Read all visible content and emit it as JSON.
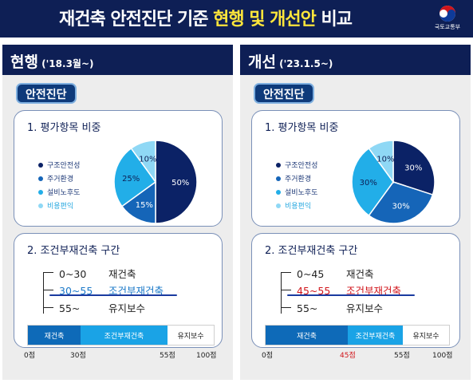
{
  "header": {
    "title_part1": "재건축 안전진단 기준 ",
    "title_highlight": "현행 및 개선안",
    "title_part2": " 비교",
    "logo_text": "국토교통부"
  },
  "left": {
    "title": "현행",
    "period": " ('18.3월~)",
    "badge": "안전진단",
    "section1_title": "1. 평가항목 비중",
    "section2_title": "2. 조건부재건축 구간",
    "legend": [
      "구조안전성",
      "주거환경",
      "설비노후도",
      "비용편익"
    ],
    "pie_labels": [
      "50%",
      "15%",
      "25%",
      "10%"
    ],
    "ranges": [
      {
        "range": "0~30",
        "label": "재건축"
      },
      {
        "range": "30~55",
        "label": "조건부재건축"
      },
      {
        "range": "55~",
        "label": "유지보수"
      }
    ],
    "bar": [
      "재건축",
      "조건부재건축",
      "유지보수"
    ],
    "scale": [
      "0점",
      "30점",
      "55점",
      "100점"
    ]
  },
  "right": {
    "title": "개선",
    "period": " ('23.1.5~)",
    "badge": "안전진단",
    "section1_title": "1. 평가항목 비중",
    "section2_title": "2. 조건부재건축 구간",
    "legend": [
      "구조안전성",
      "주거환경",
      "설비노후도",
      "비용편익"
    ],
    "pie_labels": [
      "30%",
      "30%",
      "30%",
      "10%"
    ],
    "ranges": [
      {
        "range": "0~45",
        "label": "재건축"
      },
      {
        "range": "45~55",
        "label": "조건부재건축"
      },
      {
        "range": "55~",
        "label": "유지보수"
      }
    ],
    "bar": [
      "재건축",
      "조건부재건축",
      "유지보수"
    ],
    "scale": [
      "0점",
      "45점",
      "55점",
      "100점"
    ]
  },
  "chart_data": [
    {
      "type": "pie",
      "title": "1. 평가항목 비중 (현행)",
      "categories": [
        "구조안전성",
        "주거환경",
        "설비노후도",
        "비용편익"
      ],
      "values": [
        50,
        15,
        25,
        10
      ]
    },
    {
      "type": "pie",
      "title": "1. 평가항목 비중 (개선)",
      "categories": [
        "구조안전성",
        "주거환경",
        "설비노후도",
        "비용편익"
      ],
      "values": [
        30,
        30,
        30,
        10
      ]
    }
  ],
  "colors": {
    "navy": "#0e1f55",
    "structure": "#0b2266",
    "residential": "#1565b8",
    "facility": "#22aee8",
    "cost": "#8fd8f5",
    "highlight": "#ffe63b",
    "red": "#d1151b"
  }
}
